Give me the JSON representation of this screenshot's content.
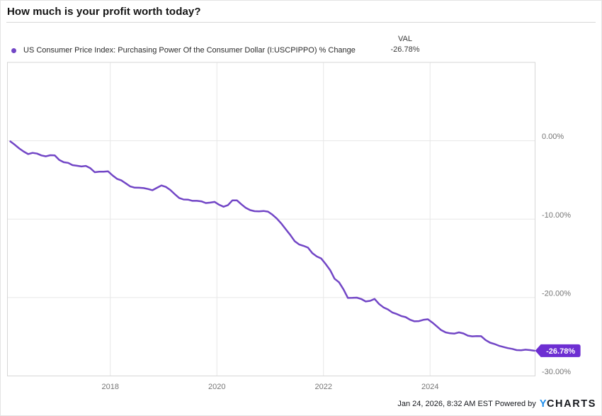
{
  "header": {
    "title": "How much is your profit worth today?"
  },
  "legend": {
    "series_label": "US Consumer Price Index: Purchasing Power Of the Consumer Dollar (I:USCPIPPO) % Change",
    "val_header": "VAL",
    "val_value": "-26.78%"
  },
  "footer": {
    "prefix": "Jan 24, 2026, 8:32 AM EST Powered by",
    "logo_y": "Y",
    "logo_charts": "CHARTS"
  },
  "colors": {
    "line": "#7246c6",
    "badge": "#6d2ed2",
    "badge_text": "#ffffff",
    "grid": "#e7e7e7",
    "plot_border": "#d6d6d6",
    "tick_text": "#757575",
    "logo_blue": "#1b8ceb"
  },
  "chart_data": {
    "type": "line",
    "title": "How much is your profit worth today?",
    "xlabel": "",
    "ylabel": "",
    "grid": true,
    "legend_position": "top-left",
    "ylim": [
      -30,
      10
    ],
    "x_range_years": [
      2016.07,
      2025.97
    ],
    "y_ticks": [
      {
        "value": 0,
        "label": "0.00%"
      },
      {
        "value": -10,
        "label": "-10.00%"
      },
      {
        "value": -20,
        "label": "-20.00%"
      },
      {
        "value": -30,
        "label": "-30.00%"
      }
    ],
    "x_ticks": [
      {
        "value": 2018,
        "label": "2018"
      },
      {
        "value": 2020,
        "label": "2020"
      },
      {
        "value": 2022,
        "label": "2022"
      },
      {
        "value": 2024,
        "label": "2024"
      }
    ],
    "end_label": "-26.78%",
    "series": [
      {
        "name": "US Consumer Price Index: Purchasing Power Of the Consumer Dollar (I:USCPIPPO) % Change",
        "frequency": "monthly",
        "start_year": 2016,
        "start_month": 2,
        "values": [
          -0.08,
          -0.51,
          -0.98,
          -1.38,
          -1.7,
          -1.54,
          -1.63,
          -1.87,
          -1.99,
          -1.84,
          -1.87,
          -2.44,
          -2.74,
          -2.82,
          -3.11,
          -3.19,
          -3.28,
          -3.21,
          -3.5,
          -4.01,
          -3.95,
          -3.95,
          -3.9,
          -4.42,
          -4.85,
          -5.06,
          -5.44,
          -5.83,
          -5.98,
          -5.99,
          -6.04,
          -6.15,
          -6.31,
          -6.0,
          -5.7,
          -5.88,
          -6.27,
          -6.8,
          -7.29,
          -7.49,
          -7.51,
          -7.66,
          -7.66,
          -7.73,
          -7.94,
          -7.89,
          -7.8,
          -8.16,
          -8.41,
          -8.21,
          -7.6,
          -7.6,
          -8.1,
          -8.56,
          -8.85,
          -8.98,
          -9.01,
          -8.96,
          -9.04,
          -9.43,
          -9.92,
          -10.56,
          -11.28,
          -11.99,
          -12.8,
          -13.22,
          -13.4,
          -13.63,
          -14.34,
          -14.76,
          -15.02,
          -15.73,
          -16.5,
          -17.6,
          -18.05,
          -18.95,
          -20.05,
          -20.04,
          -20.01,
          -20.18,
          -20.5,
          -20.42,
          -20.17,
          -20.81,
          -21.25,
          -21.51,
          -21.9,
          -22.1,
          -22.35,
          -22.5,
          -22.83,
          -23.03,
          -23.0,
          -22.84,
          -22.77,
          -23.18,
          -23.66,
          -24.15,
          -24.44,
          -24.56,
          -24.59,
          -24.44,
          -24.58,
          -24.86,
          -24.95,
          -24.91,
          -24.93,
          -25.42,
          -25.75,
          -25.92,
          -26.15,
          -26.3,
          -26.45,
          -26.55,
          -26.7,
          -26.72,
          -26.65,
          -26.7,
          -26.78
        ]
      }
    ]
  }
}
